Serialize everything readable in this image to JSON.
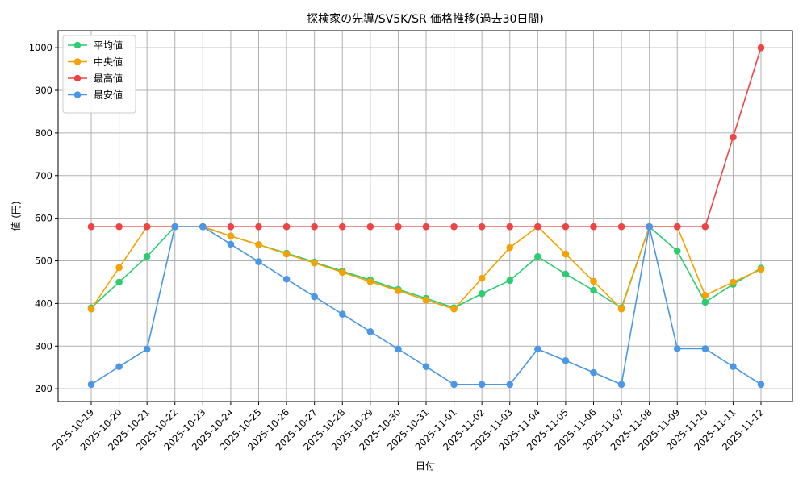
{
  "chart_data": {
    "type": "line",
    "title": "探検家の先導/SV5K/SR 価格推移(過去30日間)",
    "xlabel": "日付",
    "ylabel": "値 (円)",
    "categories": [
      "2025-10-19",
      "2025-10-20",
      "2025-10-21",
      "2025-10-22",
      "2025-10-23",
      "2025-10-24",
      "2025-10-25",
      "2025-10-26",
      "2025-10-27",
      "2025-10-28",
      "2025-10-29",
      "2025-10-30",
      "2025-10-31",
      "2025-11-01",
      "2025-11-02",
      "2025-11-03",
      "2025-11-04",
      "2025-11-05",
      "2025-11-06",
      "2025-11-07",
      "2025-11-08",
      "2025-11-09",
      "2025-11-10",
      "2025-11-11",
      "2025-11-12"
    ],
    "yticks": [
      200,
      300,
      400,
      500,
      600,
      700,
      800,
      900,
      1000
    ],
    "ylim": [
      170,
      1040
    ],
    "grid": true,
    "legend_position": "top-left",
    "series": [
      {
        "name": "平均値",
        "color": "#2ecc71",
        "values": [
          390,
          450,
          510,
          580,
          580,
          558,
          538,
          518,
          497,
          476,
          455,
          433,
          412,
          390,
          423,
          454,
          510,
          469,
          431,
          390,
          580,
          523,
          403,
          445,
          483
        ]
      },
      {
        "name": "中央値",
        "color": "#f5a200",
        "values": [
          387,
          484,
          580,
          580,
          580,
          558,
          538,
          516,
          495,
          473,
          451,
          430,
          408,
          387,
          459,
          531,
          580,
          516,
          452,
          387,
          580,
          580,
          419,
          450,
          480
        ]
      },
      {
        "name": "最高値",
        "color": "#ef4444",
        "values": [
          580,
          580,
          580,
          580,
          580,
          580,
          580,
          580,
          580,
          580,
          580,
          580,
          580,
          580,
          580,
          580,
          580,
          580,
          580,
          580,
          580,
          580,
          580,
          790,
          1000
        ]
      },
      {
        "name": "最安値",
        "color": "#4a97e8",
        "values": [
          210,
          252,
          293,
          580,
          580,
          539,
          498,
          457,
          416,
          375,
          334,
          293,
          252,
          210,
          210,
          210,
          293,
          266,
          238,
          210,
          580,
          294,
          294,
          252,
          210
        ]
      }
    ]
  }
}
